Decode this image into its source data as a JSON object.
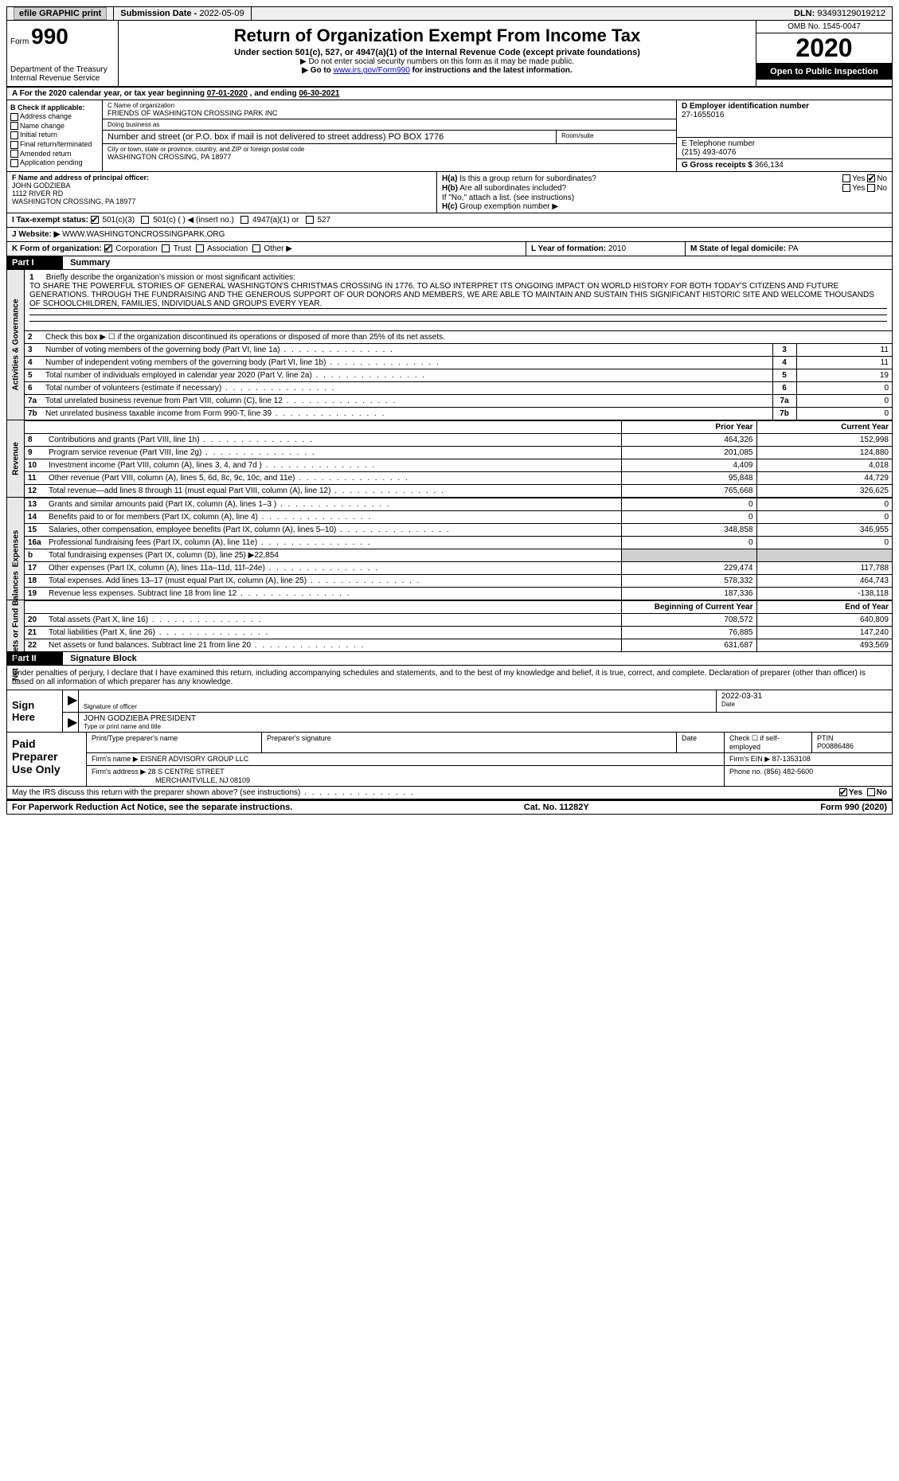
{
  "topbar": {
    "efile": "efile GRAPHIC print",
    "submission_label": "Submission Date - ",
    "submission_date": "2022-05-09",
    "dln_label": "DLN: ",
    "dln": "93493129019212"
  },
  "header": {
    "form_word": "Form",
    "form_number": "990",
    "dept1": "Department of the Treasury",
    "dept2": "Internal Revenue Service",
    "title": "Return of Organization Exempt From Income Tax",
    "subtitle": "Under section 501(c), 527, or 4947(a)(1) of the Internal Revenue Code (except private foundations)",
    "note1": "▶ Do not enter social security numbers on this form as it may be made public.",
    "note2_pre": "▶ Go to ",
    "note2_link": "www.irs.gov/Form990",
    "note2_post": " for instructions and the latest information.",
    "omb": "OMB No. 1545-0047",
    "year": "2020",
    "open": "Open to Public Inspection"
  },
  "line_a": {
    "pre": "A For the 2020 calendar year, or tax year beginning ",
    "begin": "07-01-2020",
    "mid": " , and ending ",
    "end": "06-30-2021"
  },
  "col_b": {
    "title": "B Check if applicable:",
    "opts": [
      "Address change",
      "Name change",
      "Initial return",
      "Final return/terminated",
      "Amended return",
      "Application pending"
    ]
  },
  "col_c": {
    "name_lbl": "C Name of organization",
    "name": "FRIENDS OF WASHINGTON CROSSING PARK INC",
    "dba_lbl": "Doing business as",
    "dba": "",
    "street_lbl": "Number and street (or P.O. box if mail is not delivered to street address)",
    "street": "PO BOX 1776",
    "suite_lbl": "Room/suite",
    "city_lbl": "City or town, state or province, country, and ZIP or foreign postal code",
    "city": "WASHINGTON CROSSING, PA  18977"
  },
  "col_d": {
    "ein_lbl": "D Employer identification number",
    "ein": "27-1655016",
    "phone_lbl": "E Telephone number",
    "phone": "(215) 493-4076",
    "gross_lbl": "G Gross receipts $ ",
    "gross": "366,134"
  },
  "col_f": {
    "lbl": "F Name and address of principal officer:",
    "name": "JOHN GODZIEBA",
    "addr1": "1112 RIVER RD",
    "addr2": "WASHINGTON CROSSING, PA  18977"
  },
  "col_h": {
    "ha_lbl": "H(a)",
    "ha_q": "Is this a group return for subordinates?",
    "ha_yes": "Yes",
    "ha_no": "No",
    "hb_lbl": "H(b)",
    "hb_q": "Are all subordinates included?",
    "hb_note": "If \"No,\" attach a list. (see instructions)",
    "hc_lbl": "H(c)",
    "hc_q": "Group exemption number ▶"
  },
  "status": {
    "i_lbl": "I Tax-exempt status:",
    "opt1": "501(c)(3)",
    "opt2": "501(c) (  ) ◀ (insert no.)",
    "opt3": "4947(a)(1) or",
    "opt4": "527"
  },
  "website": {
    "j_lbl": "J Website: ▶",
    "url": "WWW.WASHINGTONCROSSINGPARK.ORG"
  },
  "korg": {
    "k_lbl": "K Form of organization:",
    "opts": [
      "Corporation",
      "Trust",
      "Association",
      "Other ▶"
    ],
    "l_lbl": "L Year of formation: ",
    "l_val": "2010",
    "m_lbl": "M State of legal domicile: ",
    "m_val": "PA"
  },
  "part1": {
    "label": "Part I",
    "title": "Summary"
  },
  "mission": {
    "num": "1",
    "lbl": "Briefly describe the organization's mission or most significant activities:",
    "text": "TO SHARE THE POWERFUL STORIES OF GENERAL WASHINGTON'S CHRISTMAS CROSSING IN 1776. TO ALSO INTERPRET ITS ONGOING IMPACT ON WORLD HISTORY FOR BOTH TODAY'S CITIZENS AND FUTURE GENERATIONS. THROUGH THE FUNDRAISING AND THE GENEROUS SUPPORT OF OUR DONORS AND MEMBERS, WE ARE ABLE TO MAINTAIN AND SUSTAIN THIS SIGNIFICANT HISTORIC SITE AND WELCOME THOUSANDS OF SCHOOLCHILDREN, FAMILIES, INDIVIDUALS AND GROUPS EVERY YEAR."
  },
  "gov_rows": [
    {
      "n": "2",
      "d": "Check this box ▶ ☐ if the organization discontinued its operations or disposed of more than 25% of its net assets.",
      "box": "",
      "v": ""
    },
    {
      "n": "3",
      "d": "Number of voting members of the governing body (Part VI, line 1a)",
      "box": "3",
      "v": "11"
    },
    {
      "n": "4",
      "d": "Number of independent voting members of the governing body (Part VI, line 1b)",
      "box": "4",
      "v": "11"
    },
    {
      "n": "5",
      "d": "Total number of individuals employed in calendar year 2020 (Part V, line 2a)",
      "box": "5",
      "v": "19"
    },
    {
      "n": "6",
      "d": "Total number of volunteers (estimate if necessary)",
      "box": "6",
      "v": "0"
    },
    {
      "n": "7a",
      "d": "Total unrelated business revenue from Part VIII, column (C), line 12",
      "box": "7a",
      "v": "0"
    },
    {
      "n": "7b",
      "d": "Net unrelated business taxable income from Form 990-T, line 39",
      "box": "7b",
      "v": "0"
    }
  ],
  "fin_headers": {
    "prior": "Prior Year",
    "curr": "Current Year",
    "begin": "Beginning of Current Year",
    "end": "End of Year"
  },
  "revenue_rows": [
    {
      "n": "8",
      "d": "Contributions and grants (Part VIII, line 1h)",
      "p": "464,326",
      "c": "152,998"
    },
    {
      "n": "9",
      "d": "Program service revenue (Part VIII, line 2g)",
      "p": "201,085",
      "c": "124,880"
    },
    {
      "n": "10",
      "d": "Investment income (Part VIII, column (A), lines 3, 4, and 7d )",
      "p": "4,409",
      "c": "4,018"
    },
    {
      "n": "11",
      "d": "Other revenue (Part VIII, column (A), lines 5, 6d, 8c, 9c, 10c, and 11e)",
      "p": "95,848",
      "c": "44,729"
    },
    {
      "n": "12",
      "d": "Total revenue—add lines 8 through 11 (must equal Part VIII, column (A), line 12)",
      "p": "765,668",
      "c": "326,625"
    }
  ],
  "expense_rows": [
    {
      "n": "13",
      "d": "Grants and similar amounts paid (Part IX, column (A), lines 1–3 )",
      "p": "0",
      "c": "0"
    },
    {
      "n": "14",
      "d": "Benefits paid to or for members (Part IX, column (A), line 4)",
      "p": "0",
      "c": "0"
    },
    {
      "n": "15",
      "d": "Salaries, other compensation, employee benefits (Part IX, column (A), lines 5–10)",
      "p": "348,858",
      "c": "346,955"
    },
    {
      "n": "16a",
      "d": "Professional fundraising fees (Part IX, column (A), line 11e)",
      "p": "0",
      "c": "0"
    },
    {
      "n": "b",
      "d": "Total fundraising expenses (Part IX, column (D), line 25) ▶22,854",
      "p": "",
      "c": "",
      "grey": true
    },
    {
      "n": "17",
      "d": "Other expenses (Part IX, column (A), lines 11a–11d, 11f–24e)",
      "p": "229,474",
      "c": "117,788"
    },
    {
      "n": "18",
      "d": "Total expenses. Add lines 13–17 (must equal Part IX, column (A), line 25)",
      "p": "578,332",
      "c": "464,743"
    },
    {
      "n": "19",
      "d": "Revenue less expenses. Subtract line 18 from line 12",
      "p": "187,336",
      "c": "-138,118"
    }
  ],
  "net_rows": [
    {
      "n": "20",
      "d": "Total assets (Part X, line 16)",
      "p": "708,572",
      "c": "640,809"
    },
    {
      "n": "21",
      "d": "Total liabilities (Part X, line 26)",
      "p": "76,885",
      "c": "147,240"
    },
    {
      "n": "22",
      "d": "Net assets or fund balances. Subtract line 21 from line 20",
      "p": "631,687",
      "c": "493,569"
    }
  ],
  "side_labels": {
    "gov": "Activities & Governance",
    "rev": "Revenue",
    "exp": "Expenses",
    "net": "Net Assets or Fund Balances"
  },
  "part2": {
    "label": "Part II",
    "title": "Signature Block"
  },
  "sig": {
    "decl": "Under penalties of perjury, I declare that I have examined this return, including accompanying schedules and statements, and to the best of my knowledge and belief, it is true, correct, and complete. Declaration of preparer (other than officer) is based on all information of which preparer has any knowledge.",
    "sign_here": "Sign Here",
    "sig_officer_lbl": "Signature of officer",
    "date_lbl": "Date",
    "date": "2022-03-31",
    "name_lbl": "Type or print name and title",
    "name": "JOHN GODZIEBA  PRESIDENT"
  },
  "prep": {
    "title": "Paid Preparer Use Only",
    "name_lbl": "Print/Type preparer's name",
    "sig_lbl": "Preparer's signature",
    "date_lbl": "Date",
    "check_lbl": "Check ☐ if self-employed",
    "ptin_lbl": "PTIN",
    "ptin": "P00886486",
    "firm_name_lbl": "Firm's name ▶",
    "firm_name": "EISNER ADVISORY GROUP LLC",
    "firm_ein_lbl": "Firm's EIN ▶",
    "firm_ein": "87-1353108",
    "firm_addr_lbl": "Firm's address ▶",
    "firm_addr1": "28 S CENTRE STREET",
    "firm_addr2": "MERCHANTVILLE, NJ  08109",
    "phone_lbl": "Phone no. ",
    "phone": "(856) 482-5600"
  },
  "footer": {
    "discuss": "May the IRS discuss this return with the preparer shown above? (see instructions)",
    "yes": "Yes",
    "no": "No",
    "paperwork": "For Paperwork Reduction Act Notice, see the separate instructions.",
    "cat": "Cat. No. 11282Y",
    "form": "Form 990 (2020)"
  }
}
